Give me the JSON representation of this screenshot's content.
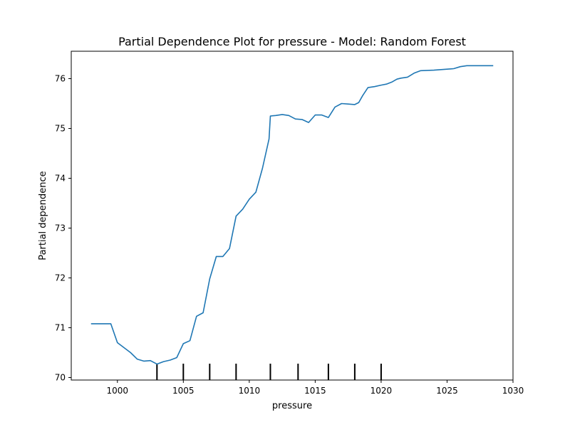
{
  "chart_data": {
    "type": "line",
    "title": "Partial Dependence Plot for pressure - Model: Random Forest",
    "xlabel": "pressure",
    "ylabel": "Partial dependence",
    "xlim": [
      996.5,
      1030
    ],
    "ylim": [
      69.95,
      76.55
    ],
    "xticks": [
      1000,
      1005,
      1010,
      1015,
      1020,
      1025,
      1030
    ],
    "yticks": [
      70,
      71,
      72,
      73,
      74,
      75,
      76
    ],
    "grid": false,
    "legend": "none",
    "line_color": "#1f77b4",
    "series": [
      {
        "x": [
          998.0,
          998.5,
          999.0,
          999.5,
          1000.0,
          1000.5,
          1001.0,
          1001.5,
          1002.0,
          1002.5,
          1003.0,
          1003.5,
          1004.0,
          1004.5,
          1005.0,
          1005.5,
          1006.0,
          1006.5,
          1007.0,
          1007.5,
          1008.0,
          1008.5,
          1009.0,
          1009.5,
          1010.0,
          1010.5,
          1011.0,
          1011.5,
          1011.6,
          1012.0,
          1012.5,
          1013.0,
          1013.5,
          1014.0,
          1014.5,
          1015.0,
          1015.5,
          1016.0,
          1016.5,
          1017.0,
          1017.5,
          1018.0,
          1018.3,
          1018.6,
          1019.0,
          1019.5,
          1020.0,
          1020.4,
          1020.8,
          1021.2,
          1021.5,
          1022.0,
          1022.5,
          1023.0,
          1024.0,
          1025.0,
          1025.5,
          1026.0,
          1026.5,
          1027.0,
          1028.0,
          1028.5
        ],
        "y": [
          71.08,
          71.08,
          71.08,
          71.08,
          70.7,
          70.6,
          70.5,
          70.37,
          70.33,
          70.34,
          70.27,
          70.32,
          70.35,
          70.4,
          70.68,
          70.74,
          71.23,
          71.3,
          71.98,
          72.43,
          72.43,
          72.59,
          73.24,
          73.38,
          73.58,
          73.72,
          74.2,
          74.79,
          75.25,
          75.26,
          75.28,
          75.26,
          75.19,
          75.18,
          75.12,
          75.27,
          75.27,
          75.22,
          75.43,
          75.5,
          75.49,
          75.48,
          75.52,
          75.66,
          75.82,
          75.84,
          75.87,
          75.89,
          75.93,
          75.99,
          76.01,
          76.03,
          76.11,
          76.16,
          76.17,
          76.19,
          76.2,
          76.24,
          76.26,
          76.26,
          76.26,
          76.26
        ]
      }
    ],
    "rug": [
      1003,
      1005,
      1007,
      1009,
      1011.6,
      1013.7,
      1016,
      1018,
      1020
    ]
  }
}
